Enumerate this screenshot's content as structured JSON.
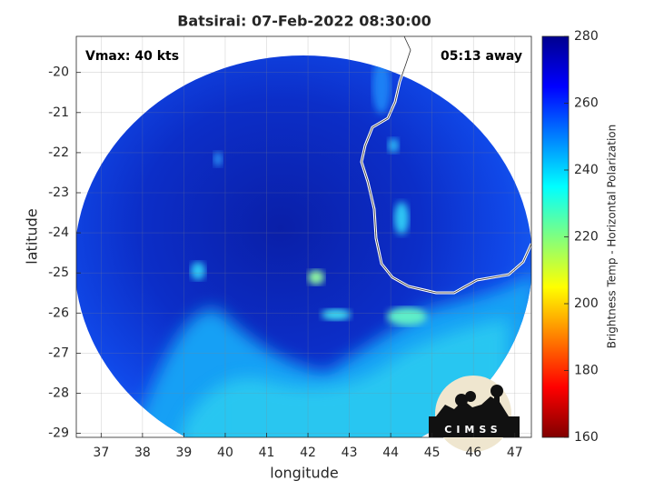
{
  "chart_data": {
    "type": "map",
    "title": "Batsirai: 07-Feb-2022 08:30:00",
    "annotations": [
      "Vmax: 40 kts",
      "05:13 away"
    ],
    "xlabel": "longitude",
    "ylabel": "latitude",
    "xlim": [
      36.4,
      47.4
    ],
    "xticks": [
      37,
      38,
      39,
      40,
      41,
      42,
      43,
      44,
      45,
      46,
      47
    ],
    "ylim": [
      -29.1,
      -19.1
    ],
    "yticks": [
      -29,
      -28,
      -27,
      -26,
      -25,
      -24,
      -23,
      -22,
      -21,
      -20
    ],
    "grid": true,
    "colorbar": {
      "label": "Brightness Temp - Horizontal Polarization",
      "lim": [
        160,
        280
      ],
      "ticks": [
        160,
        180,
        200,
        220,
        240,
        260,
        280
      ]
    },
    "logo": "CIMSS"
  }
}
